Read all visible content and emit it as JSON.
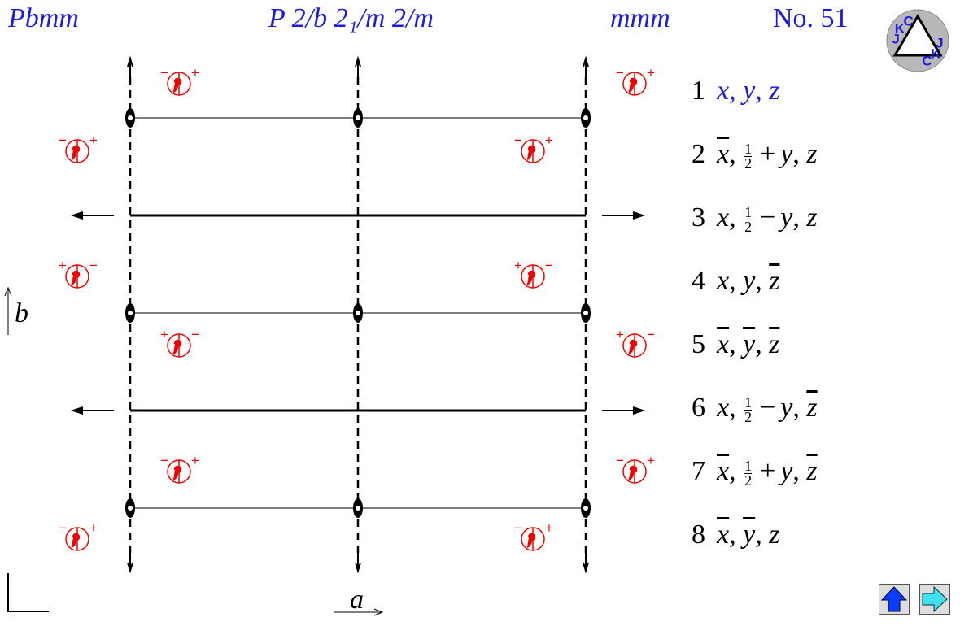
{
  "header": {
    "short_symbol": "Pbmm",
    "full_symbol": "P 2/b 2₁/m 2/m",
    "point_group": "mmm",
    "number": "No. 51"
  },
  "logo": [
    "J",
    "K",
    "C"
  ],
  "axes": {
    "b": "b",
    "a": "a"
  },
  "symbols": [
    {
      "left": "−",
      "right": "+"
    },
    {
      "left": "−",
      "right": "+"
    },
    {
      "left": "−",
      "right": "+"
    },
    {
      "left": "−",
      "right": "+"
    },
    {
      "left": "+",
      "right": "−"
    },
    {
      "left": "+",
      "right": "−"
    },
    {
      "left": "+",
      "right": "−"
    },
    {
      "left": "+",
      "right": "−"
    },
    {
      "left": "−",
      "right": "+"
    },
    {
      "left": "−",
      "right": "+"
    },
    {
      "left": "−",
      "right": "+"
    },
    {
      "left": "−",
      "right": "+"
    }
  ],
  "separator": ", ",
  "positions": [
    {
      "index": "1",
      "highlight": true,
      "coords": [
        {
          "var": "x"
        },
        {
          "var": "y"
        },
        {
          "var": "z"
        }
      ]
    },
    {
      "index": "2",
      "coords": [
        {
          "var": "x",
          "bar": true
        },
        {
          "frac": {
            "num": "1",
            "den": "2"
          },
          "op": "+",
          "var": "y"
        },
        {
          "var": "z"
        }
      ]
    },
    {
      "index": "3",
      "coords": [
        {
          "var": "x"
        },
        {
          "frac": {
            "num": "1",
            "den": "2"
          },
          "op": "−",
          "var": "y"
        },
        {
          "var": "z"
        }
      ]
    },
    {
      "index": "4",
      "coords": [
        {
          "var": "x"
        },
        {
          "var": "y"
        },
        {
          "var": "z",
          "bar": true
        }
      ]
    },
    {
      "index": "5",
      "coords": [
        {
          "var": "x",
          "bar": true
        },
        {
          "var": "y",
          "bar": true
        },
        {
          "var": "z",
          "bar": true
        }
      ]
    },
    {
      "index": "6",
      "coords": [
        {
          "var": "x"
        },
        {
          "frac": {
            "num": "1",
            "den": "2"
          },
          "op": "−",
          "var": "y"
        },
        {
          "var": "z",
          "bar": true
        }
      ]
    },
    {
      "index": "7",
      "coords": [
        {
          "var": "x",
          "bar": true
        },
        {
          "frac": {
            "num": "1",
            "den": "2"
          },
          "op": "+",
          "var": "y"
        },
        {
          "var": "z",
          "bar": true
        }
      ]
    },
    {
      "index": "8",
      "coords": [
        {
          "var": "x",
          "bar": true
        },
        {
          "var": "y",
          "bar": true
        },
        {
          "var": "z"
        }
      ]
    }
  ]
}
